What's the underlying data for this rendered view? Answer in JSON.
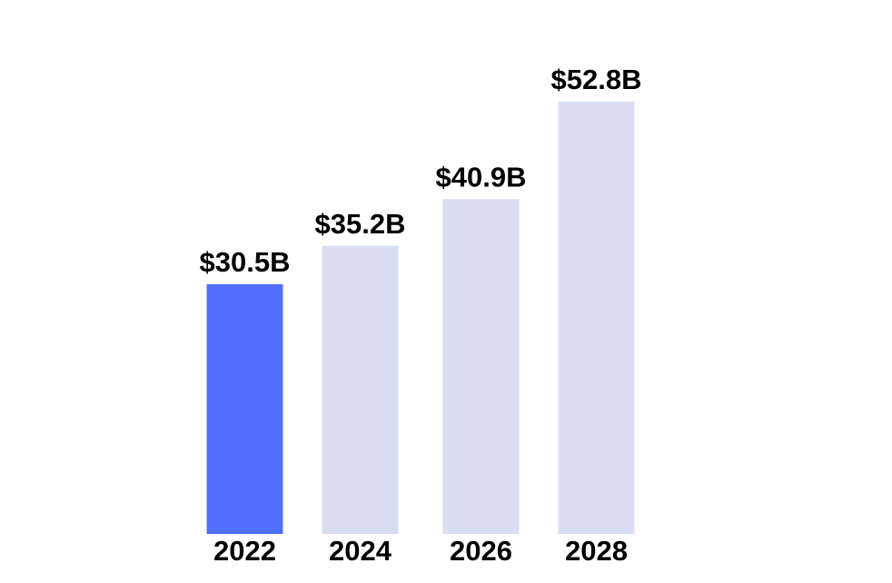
{
  "chart_data": {
    "type": "bar",
    "categories": [
      "2022",
      "2024",
      "2026",
      "2028"
    ],
    "values": [
      30.5,
      35.2,
      40.9,
      52.8
    ],
    "value_labels": [
      "$30.5B",
      "$35.2B",
      "$40.9B",
      "$52.8B"
    ],
    "colors": [
      "#5170ff",
      "#d9def3",
      "#d9def3",
      "#d9def3"
    ]
  }
}
